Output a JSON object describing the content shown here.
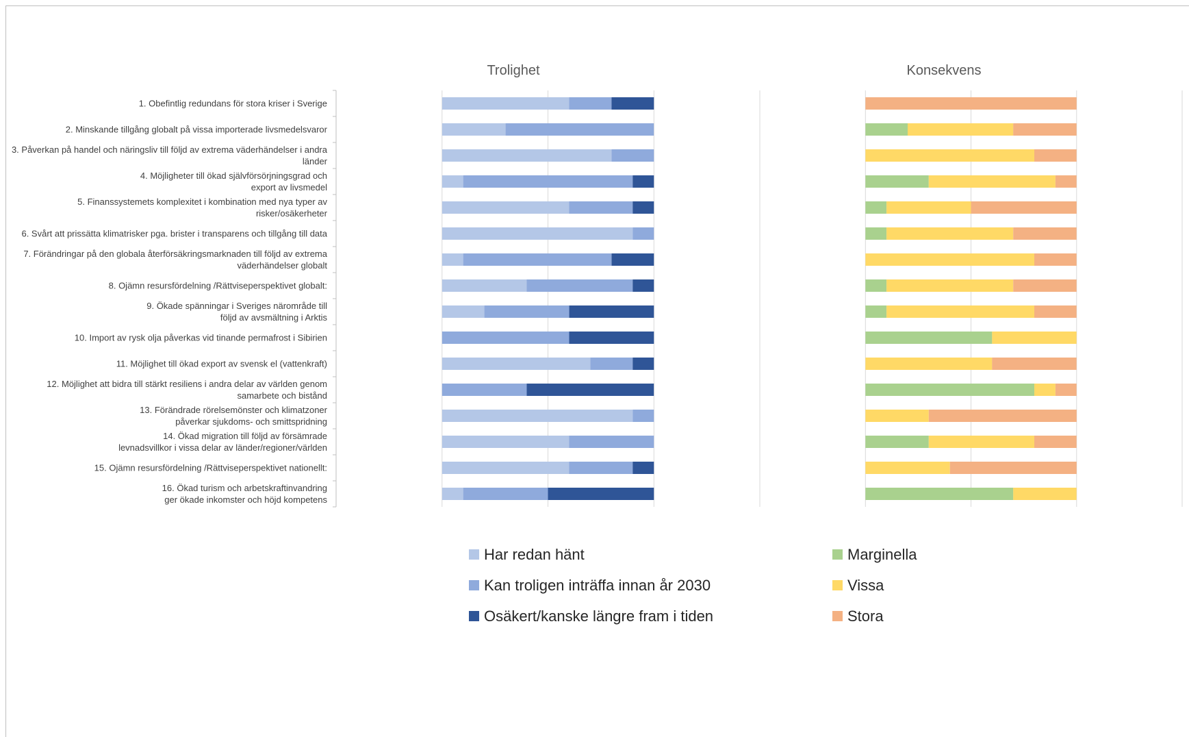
{
  "chart_data": {
    "type": "bar",
    "orientation": "horizontal",
    "stacked": true,
    "grid": true,
    "legend_placement": "bottom",
    "categories": [
      [
        "1. Obefintlig redundans för stora kriser i Sverige"
      ],
      [
        "2. Minskande tillgång globalt på vissa importerade livsmedelsvaror"
      ],
      [
        "3. Påverkan på handel och näringsliv till följd av extrema väderhändelser i andra",
        "länder"
      ],
      [
        "4. Möjligheter till ökad självförsörjningsgrad och",
        "export av livsmedel"
      ],
      [
        "5. Finanssystemets komplexitet i kombination med nya typer av",
        "risker/osäkerheter"
      ],
      [
        "6. Svårt att prissätta klimatrisker pga. brister i transparens och tillgång till data"
      ],
      [
        "7. Förändringar på den globala återförsäkringsmarknaden till följd av extrema",
        "väderhändelser globalt"
      ],
      [
        "8. Ojämn resursfördelning /Rättviseperspektivet globalt:"
      ],
      [
        "9. Ökade spänningar i Sveriges närområde till",
        "följd av avsmältning i Arktis"
      ],
      [
        "10. Import av rysk olja påverkas vid tinande permafrost i Sibirien"
      ],
      [
        "11. Möjlighet till ökad export av svensk el (vattenkraft)"
      ],
      [
        "12. Möjlighet att bidra till stärkt resiliens i andra delar av världen genom",
        "samarbete och bistånd"
      ],
      [
        "13. Förändrade rörelsemönster och klimatzoner",
        "påverkar sjukdoms- och smittspridning"
      ],
      [
        "14. Ökad migration till följd av försämrade",
        "levnadsvillkor i vissa delar av länder/regioner/världen"
      ],
      [
        "15. Ojämn resursfördelning /Rättviseperspektivet nationellt:"
      ],
      [
        "16. Ökad turism och arbetskraftinvandring",
        "ger ökade inkomster och höjd kompetens"
      ]
    ],
    "panels": [
      {
        "title": "Trolighet",
        "xlim": [
          -10,
          10
        ],
        "grid_step": 5,
        "series": [
          {
            "name": "Har redan hänt",
            "color": "#b4c7e7",
            "values": [
              6,
              3,
              8,
              1,
              6,
              9,
              1,
              4,
              2,
              0,
              7,
              0,
              9,
              6,
              6,
              1
            ]
          },
          {
            "name": "Kan troligen inträffa innan år 2030",
            "color": "#8faadc",
            "values": [
              2,
              7,
              2,
              8,
              3,
              1,
              7,
              5,
              4,
              6,
              2,
              4,
              1,
              4,
              3,
              4
            ]
          },
          {
            "name": "Osäkert/kanske längre fram i tiden",
            "color": "#2f5597",
            "values": [
              2,
              0,
              0,
              1,
              1,
              0,
              2,
              1,
              4,
              4,
              1,
              6,
              0,
              0,
              1,
              5
            ]
          }
        ]
      },
      {
        "title": "Konsekvens",
        "xlim": [
          -10,
          10
        ],
        "grid_step": 5,
        "series": [
          {
            "name": "Marginella",
            "color": "#a9d18e",
            "values": [
              0,
              2,
              0,
              3,
              1,
              1,
              0,
              1,
              1,
              6,
              0,
              8,
              0,
              3,
              0,
              7
            ]
          },
          {
            "name": "Vissa",
            "color": "#ffd966",
            "values": [
              0,
              5,
              8,
              6,
              4,
              6,
              8,
              6,
              7,
              4,
              6,
              1,
              3,
              5,
              4,
              3
            ]
          },
          {
            "name": "Stora",
            "color": "#f4b183",
            "values": [
              10,
              3,
              2,
              1,
              5,
              3,
              2,
              3,
              2,
              0,
              4,
              1,
              7,
              2,
              6,
              0
            ]
          }
        ]
      }
    ]
  }
}
